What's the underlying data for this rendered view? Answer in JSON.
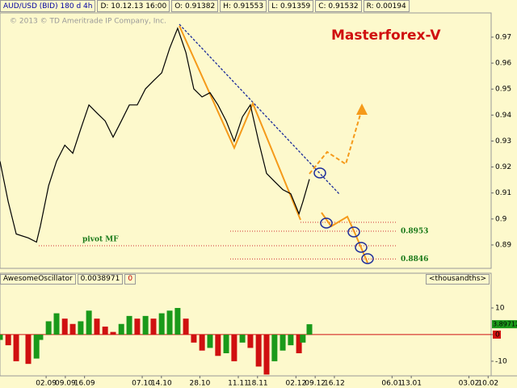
{
  "chart_data": [
    {
      "type": "line",
      "header_fields": [
        "AUD/USD (BID) 180 d 4h",
        "D: 10.12.13 16:00",
        "O: 0.91382",
        "H: 0.91553",
        "L: 0.91359",
        "C: 0.91532",
        "R: 0.00194"
      ],
      "copyright": "© 2013 © TD Ameritrade IP Company, Inc.",
      "title": "Masterforex-V",
      "x": [
        -16.8,
        -13.8,
        -10.9,
        -6.5,
        -3.5,
        -2.1,
        0.9,
        3.8,
        6.8,
        9.7,
        12.6,
        15.6,
        18.5,
        21.5,
        24.4,
        27.4,
        30.3,
        33.2,
        36.2,
        39.1,
        42.1,
        45,
        47.9,
        50.9,
        53.8,
        56.8,
        59.7,
        62.6,
        65.6,
        68.5,
        71.5,
        74.4,
        77.4,
        80.3,
        83.2,
        86.2,
        89.1,
        92.1,
        93.5,
        95.9
      ],
      "series": [
        {
          "name": "AUD/USD",
          "color": "#000000",
          "values": [
            0.9222,
            0.9066,
            0.8942,
            0.8927,
            0.8911,
            0.8973,
            0.9128,
            0.9222,
            0.9284,
            0.9253,
            0.9346,
            0.9439,
            0.9408,
            0.9377,
            0.9315,
            0.9377,
            0.9439,
            0.9439,
            0.9501,
            0.9532,
            0.9563,
            0.9657,
            0.9734,
            0.9641,
            0.9501,
            0.947,
            0.9486,
            0.9439,
            0.9377,
            0.9299,
            0.9393,
            0.9439,
            0.9299,
            0.9175,
            0.9144,
            0.9113,
            0.9097,
            0.902,
            0.9066,
            0.9153
          ]
        }
      ],
      "xlim": [
        -16.8,
        162.1
      ],
      "ylim": [
        0.8816,
        0.9787
      ],
      "yticks": [
        0.97,
        0.96,
        0.95,
        0.94,
        0.93,
        0.92,
        0.91,
        0.9,
        0.89
      ],
      "levels": [
        {
          "value": 0.8953,
          "label": "0.8953"
        },
        {
          "value": 0.8846,
          "label": "0.8846"
        }
      ],
      "pivot": {
        "value": 0.8897,
        "label": "pivot MF"
      },
      "level_color": "#d03030",
      "label_color": "#1a7a1a"
    },
    {
      "type": "bar",
      "header_fields": [
        "AwesomeOscillator",
        "0.0038971",
        "0"
      ],
      "unit": "<thousandths>",
      "x": [
        -16.8,
        -13.8,
        -10.9,
        -6.5,
        -3.5,
        -2.1,
        0.9,
        3.8,
        6.8,
        9.7,
        12.6,
        15.6,
        18.5,
        21.5,
        24.4,
        27.4,
        30.3,
        33.2,
        36.2,
        39.1,
        42.1,
        45,
        47.9,
        50.9,
        53.8,
        56.8,
        59.7,
        62.6,
        65.6,
        68.5,
        71.5,
        74.4,
        77.4,
        80.3,
        83.2,
        86.2,
        89.1,
        92.1,
        93.5,
        95.9
      ],
      "values": [
        -2,
        -4,
        -10,
        -11,
        -9,
        -2,
        5,
        8,
        6,
        4,
        5,
        9,
        6,
        3,
        1,
        4,
        7,
        6,
        7,
        6,
        8,
        9,
        10,
        6,
        -3,
        -6,
        -5,
        -8,
        -7,
        -10,
        -3,
        -5,
        -12,
        -15,
        -10,
        -6,
        -4,
        -7,
        -3,
        3.89712
      ],
      "up_color": "#1a9a1a",
      "down_color": "#d01010",
      "xlim": [
        -16.8,
        162.1
      ],
      "ylim": [
        -15.5,
        18.8
      ],
      "yticks": [
        10,
        0,
        -10
      ],
      "xticks": [
        {
          "value": 0,
          "label": "02.09"
        },
        {
          "value": 7,
          "label": "09.09"
        },
        {
          "value": 14,
          "label": "16.09"
        },
        {
          "value": 35,
          "label": "07.10"
        },
        {
          "value": 42,
          "label": "14.10"
        },
        {
          "value": 56,
          "label": "28.10"
        },
        {
          "value": 70,
          "label": "11.11"
        },
        {
          "value": 77,
          "label": "18.11"
        },
        {
          "value": 91,
          "label": "02.12"
        },
        {
          "value": 98,
          "label": "09.12"
        },
        {
          "value": 105,
          "label": "16.12"
        },
        {
          "value": 126,
          "label": "06.01"
        },
        {
          "value": 133,
          "label": "13.01"
        },
        {
          "value": 154,
          "label": "03.02"
        },
        {
          "value": 161,
          "label": "10.02"
        }
      ]
    }
  ]
}
